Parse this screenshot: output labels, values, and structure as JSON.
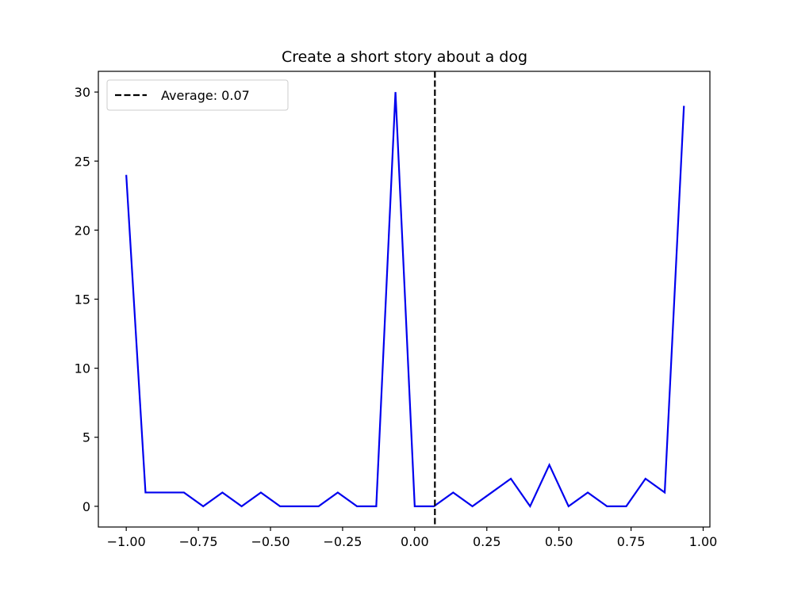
{
  "chart_data": {
    "type": "line",
    "title": "Create a short story about a dog",
    "xlabel": "",
    "ylabel": "",
    "xlim": [
      -1.0967,
      1.0233
    ],
    "ylim": [
      -1.5,
      31.5
    ],
    "x_ticks": [
      -1.0,
      -0.75,
      -0.5,
      -0.25,
      0.0,
      0.25,
      0.5,
      0.75,
      1.0
    ],
    "x_tick_labels": [
      "−1.00",
      "−0.75",
      "−0.50",
      "−0.25",
      "0.00",
      "0.25",
      "0.50",
      "0.75",
      "1.00"
    ],
    "y_ticks": [
      0,
      5,
      10,
      15,
      20,
      25,
      30
    ],
    "y_tick_labels": [
      "0",
      "5",
      "10",
      "15",
      "20",
      "25",
      "30"
    ],
    "grid": false,
    "legend_position": "top-left",
    "series": [
      {
        "color": "#0000ee",
        "x": [
          -1.0,
          -0.9333,
          -0.8667,
          -0.8,
          -0.7333,
          -0.6667,
          -0.6,
          -0.5333,
          -0.4667,
          -0.4,
          -0.3333,
          -0.2667,
          -0.2,
          -0.1333,
          -0.0667,
          0.0,
          0.0667,
          0.1333,
          0.2,
          0.2667,
          0.3333,
          0.4,
          0.4667,
          0.5333,
          0.6,
          0.6667,
          0.7333,
          0.8,
          0.8667,
          0.9333
        ],
        "y": [
          24,
          1,
          1,
          1,
          0,
          1,
          0,
          1,
          0,
          0,
          0,
          1,
          0,
          0,
          30,
          0,
          0,
          1,
          0,
          1,
          2,
          0,
          3,
          0,
          1,
          0,
          0,
          2,
          1,
          29
        ]
      }
    ],
    "vlines": [
      {
        "name": "Average: 0.07",
        "x": 0.07,
        "color": "#000000",
        "style": "dashed"
      }
    ]
  }
}
